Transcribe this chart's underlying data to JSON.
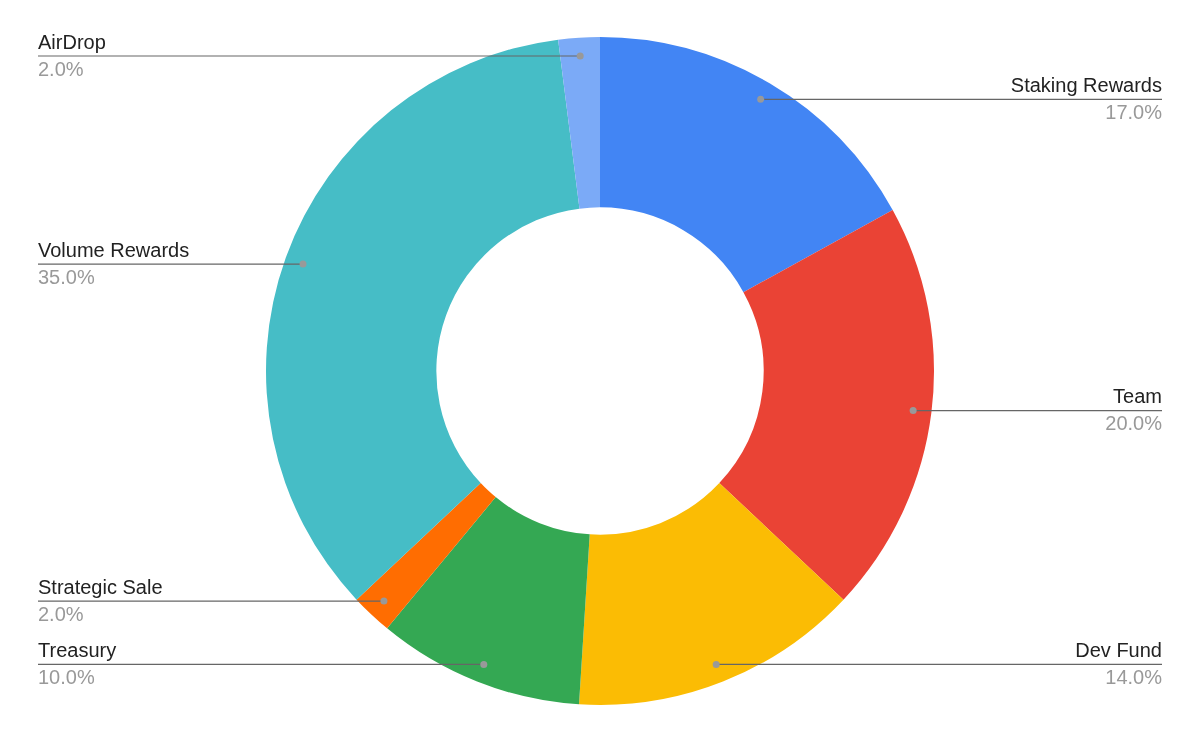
{
  "chart_data": {
    "type": "donut",
    "categories": [
      "Staking Rewards",
      "Team",
      "Dev Fund",
      "Treasury",
      "Strategic Sale",
      "Volume Rewards",
      "AirDrop"
    ],
    "values": [
      17,
      20,
      14,
      10,
      2,
      35,
      2
    ],
    "colors": [
      "#4285f4",
      "#ea4335",
      "#fbbc04",
      "#34a853",
      "#ff6d01",
      "#46bdc6",
      "#7baaf7"
    ],
    "value_labels": [
      "17.0%",
      "20.0%",
      "14.0%",
      "10.0%",
      "2.0%",
      "35.0%",
      "2.0%"
    ],
    "legend": false
  }
}
